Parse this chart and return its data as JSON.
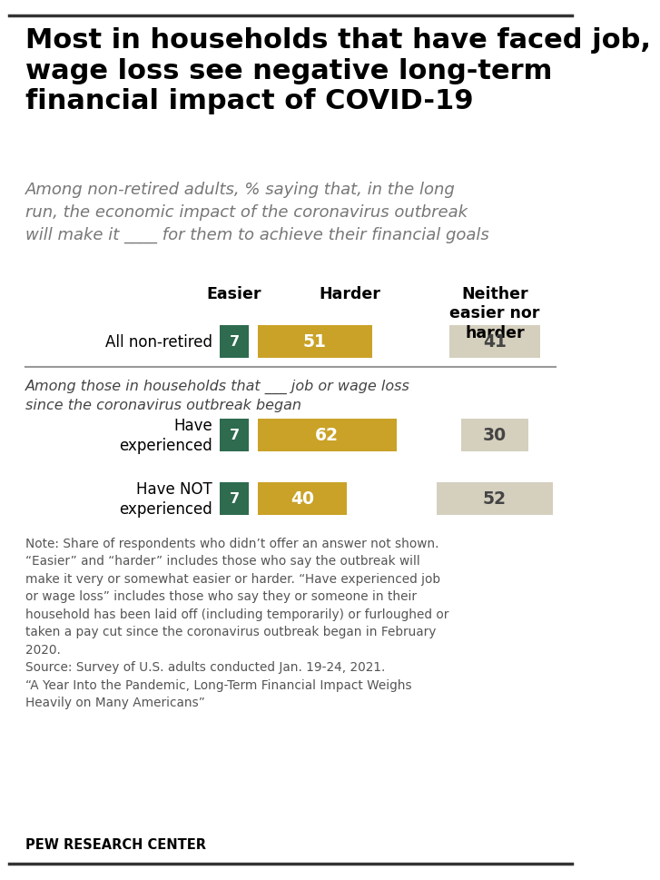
{
  "title": "Most in households that have faced job,\nwage loss see negative long-term\nfinancial impact of COVID-19",
  "subtitle": "Among non-retired adults, % saying that, in the long\nrun, the economic impact of the coronavirus outbreak\nwill make it ____ for them to achieve their financial goals",
  "rows": [
    {
      "label": "All non-retired",
      "label2": null,
      "easier": 7,
      "harder": 51,
      "neither": 41
    },
    {
      "label": "Have",
      "label2": "experienced",
      "easier": 7,
      "harder": 62,
      "neither": 30
    },
    {
      "label": "Have NOT",
      "label2": "experienced",
      "easier": 7,
      "harder": 40,
      "neither": 52
    }
  ],
  "section_label": "Among those in households that ___ job or wage loss\nsince the coronavirus outbreak began",
  "col_easier": "Easier",
  "col_harder": "Harder",
  "col_neither": "Neither\neasier nor\nharder",
  "color_easier": "#2e6b4f",
  "color_harder": "#c9a227",
  "color_neither": "#d5cfbe",
  "note_text": "Note: Share of respondents who didn’t offer an answer not shown.\n“Easier” and “harder” includes those who say the outbreak will\nmake it very or somewhat easier or harder. “Have experienced job\nor wage loss” includes those who say they or someone in their\nhousehold has been laid off (including temporarily) or furloughed or\ntaken a pay cut since the coronavirus outbreak began in February\n2020.\nSource: Survey of U.S. adults conducted Jan. 19-24, 2021.\n“A Year Into the Pandemic, Long-Term Financial Impact Weighs\nHeavily on Many Americans”",
  "source_label": "PEW RESEARCH CENTER",
  "bg_color": "#ffffff",
  "divider_color": "#999999",
  "border_color": "#cccccc"
}
